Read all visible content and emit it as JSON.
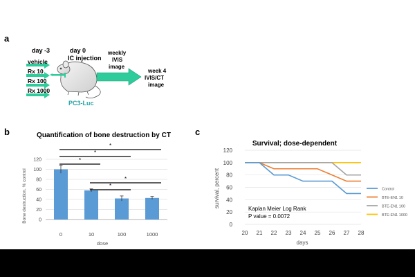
{
  "panel_a": {
    "letter": "a",
    "day_minus3": "day -3",
    "day0_line1": "day 0",
    "day0_line2": "IC injection",
    "weekly_line1": "weekly",
    "weekly_line2": "IVIS",
    "weekly_line3": "image",
    "week4_line1": "week 4",
    "week4_line2": "IVIS/CT",
    "week4_line3": "image",
    "groups": [
      "vehicle",
      "Rx 10",
      "Rx 100",
      "Rx 1000"
    ],
    "cell_line": "PC3-Luc",
    "colors": {
      "arrow": "#2ecc9b",
      "cell_line": "#29a3a3"
    }
  },
  "chart_data": [
    {
      "id": "b",
      "type": "bar",
      "panel_letter": "b",
      "title": "Quantification of bone destruction by CT",
      "xlabel": "dose",
      "ylabel": "Bone destruction, % control",
      "categories": [
        "0",
        "10",
        "100",
        "1000"
      ],
      "values": [
        100,
        58,
        42,
        43
      ],
      "errors": [
        8,
        3,
        5,
        3
      ],
      "ylim": [
        0,
        120
      ],
      "yticks": [
        0,
        20,
        40,
        60,
        80,
        100,
        120
      ],
      "significance": [
        {
          "from": "0",
          "to": "1000",
          "label": "*"
        },
        {
          "from": "0",
          "to": "100",
          "label": "*"
        },
        {
          "from": "0",
          "to": "10",
          "label": "*"
        },
        {
          "from": "10",
          "to": "1000",
          "label": "*"
        },
        {
          "from": "10",
          "to": "100",
          "label": "*"
        }
      ],
      "color": "#5b9bd5"
    },
    {
      "id": "c",
      "type": "line",
      "panel_letter": "c",
      "title": "Survival; dose-dependent",
      "xlabel": "days",
      "ylabel": "survival, percent",
      "x": [
        20,
        21,
        22,
        23,
        24,
        25,
        26,
        27,
        28
      ],
      "xlim": [
        20,
        28
      ],
      "ylim": [
        0,
        120
      ],
      "yticks": [
        0,
        20,
        40,
        60,
        80,
        100,
        120
      ],
      "series": [
        {
          "name": "Control",
          "color": "#5b9bd5",
          "x": [
            20,
            21,
            22,
            23,
            24,
            25,
            26,
            27,
            28
          ],
          "y": [
            100,
            100,
            80,
            80,
            70,
            70,
            70,
            50,
            50
          ]
        },
        {
          "name": "BTE-EN1 10",
          "color": "#ed7d31",
          "x": [
            20,
            21,
            22,
            23,
            24,
            25,
            26,
            27,
            28
          ],
          "y": [
            100,
            100,
            90,
            90,
            90,
            90,
            80,
            70,
            70
          ]
        },
        {
          "name": "BTE-EN1 100",
          "color": "#a5a5a5",
          "x": [
            20,
            21,
            22,
            23,
            24,
            25,
            26,
            27,
            28
          ],
          "y": [
            100,
            100,
            100,
            100,
            100,
            100,
            100,
            80,
            80
          ]
        },
        {
          "name": "BTE-EN1 1000",
          "color": "#ffc000",
          "x": [
            20,
            21,
            22,
            23,
            24,
            25,
            26,
            27,
            28
          ],
          "y": [
            100,
            100,
            100,
            100,
            100,
            100,
            100,
            100,
            100
          ]
        }
      ],
      "annotation_line1": "Kaplan Meier Log Rank",
      "annotation_line2": "P value = 0.0072"
    }
  ]
}
